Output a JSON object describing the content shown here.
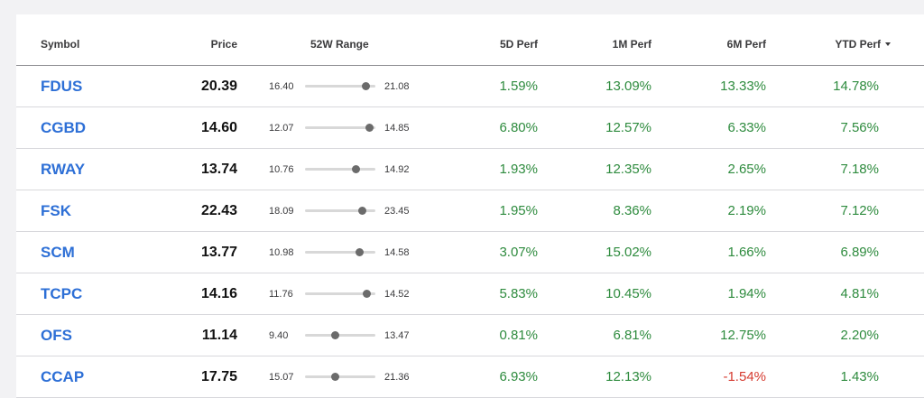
{
  "table": {
    "headers": {
      "symbol": "Symbol",
      "price": "Price",
      "range": "52W Range",
      "perf5d": "5D Perf",
      "perf1m": "1M Perf",
      "perf6m": "6M Perf",
      "perfytd": "YTD Perf"
    },
    "sort": {
      "column": "perfytd",
      "direction": "descending",
      "icon": "caret-down-icon"
    },
    "colors": {
      "positive": "#2e8b3e",
      "negative": "#d63b30",
      "link": "#2d6fd6"
    },
    "rows": [
      {
        "symbol": "FDUS",
        "price": "20.39",
        "low": "16.40",
        "high": "21.08",
        "p5d": "1.59%",
        "p1m": "13.09%",
        "p6m": "13.33%",
        "pytd": "14.78%"
      },
      {
        "symbol": "CGBD",
        "price": "14.60",
        "low": "12.07",
        "high": "14.85",
        "p5d": "6.80%",
        "p1m": "12.57%",
        "p6m": "6.33%",
        "pytd": "7.56%"
      },
      {
        "symbol": "RWAY",
        "price": "13.74",
        "low": "10.76",
        "high": "14.92",
        "p5d": "1.93%",
        "p1m": "12.35%",
        "p6m": "2.65%",
        "pytd": "7.18%"
      },
      {
        "symbol": "FSK",
        "price": "22.43",
        "low": "18.09",
        "high": "23.45",
        "p5d": "1.95%",
        "p1m": "8.36%",
        "p6m": "2.19%",
        "pytd": "7.12%"
      },
      {
        "symbol": "SCM",
        "price": "13.77",
        "low": "10.98",
        "high": "14.58",
        "p5d": "3.07%",
        "p1m": "15.02%",
        "p6m": "1.66%",
        "pytd": "6.89%"
      },
      {
        "symbol": "TCPC",
        "price": "14.16",
        "low": "11.76",
        "high": "14.52",
        "p5d": "5.83%",
        "p1m": "10.45%",
        "p6m": "1.94%",
        "pytd": "4.81%"
      },
      {
        "symbol": "OFS",
        "price": "11.14",
        "low": "9.40",
        "high": "13.47",
        "p5d": "0.81%",
        "p1m": "6.81%",
        "p6m": "12.75%",
        "pytd": "2.20%"
      },
      {
        "symbol": "CCAP",
        "price": "17.75",
        "low": "15.07",
        "high": "21.36",
        "p5d": "6.93%",
        "p1m": "12.13%",
        "p6m": "-1.54%",
        "pytd": "1.43%"
      }
    ]
  }
}
